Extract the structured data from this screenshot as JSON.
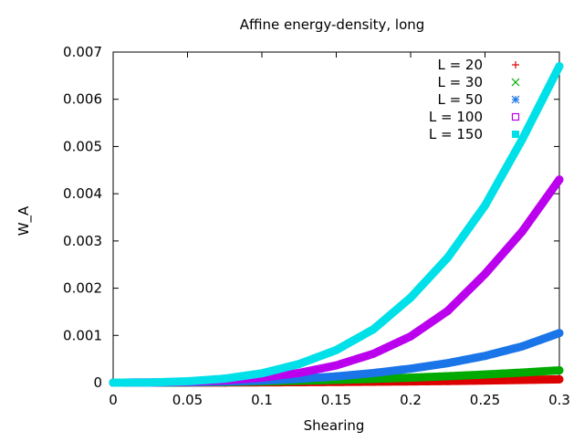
{
  "chart_data": {
    "type": "scatter",
    "title": "Affine energy-density, long",
    "xlabel": "Shearing",
    "ylabel": "W_A",
    "xlim": [
      0,
      0.3
    ],
    "ylim": [
      0,
      0.007
    ],
    "x_ticks": [
      "0",
      "0.05",
      "0.1",
      "0.15",
      "0.2",
      "0.25",
      "0.3"
    ],
    "y_ticks": [
      "0",
      "0.001",
      "0.002",
      "0.003",
      "0.004",
      "0.005",
      "0.006",
      "0.007"
    ],
    "grid": false,
    "legend_position": "top-right",
    "series": [
      {
        "name": "L = 20",
        "color": "#dd0000",
        "marker": "plus",
        "x": [
          0,
          0.025,
          0.05,
          0.075,
          0.1,
          0.125,
          0.15,
          0.175,
          0.2,
          0.225,
          0.25,
          0.275,
          0.3
        ],
        "y": [
          0,
          2e-07,
          1.3e-06,
          3.4e-06,
          6.3e-06,
          1e-05,
          1.45e-05,
          2e-05,
          2.6e-05,
          3.4e-05,
          4.5e-05,
          5.7e-05,
          7e-05
        ]
      },
      {
        "name": "L = 30",
        "color": "#00aa00",
        "marker": "x",
        "x": [
          0,
          0.025,
          0.05,
          0.075,
          0.1,
          0.125,
          0.15,
          0.175,
          0.2,
          0.225,
          0.25,
          0.275,
          0.3
        ],
        "y": [
          0,
          9e-07,
          4.9e-06,
          1.3e-05,
          2.5e-05,
          4e-05,
          5.8e-05,
          8e-05,
          0.000105,
          0.000136,
          0.000172,
          0.000213,
          0.00026
        ]
      },
      {
        "name": "L = 50",
        "color": "#1a75e8",
        "marker": "star",
        "x": [
          0,
          0.025,
          0.05,
          0.075,
          0.1,
          0.125,
          0.15,
          0.175,
          0.2,
          0.225,
          0.25,
          0.275,
          0.3
        ],
        "y": [
          0,
          2.2e-06,
          8.4e-06,
          2.1e-05,
          4.4e-05,
          8e-05,
          0.000132,
          0.000203,
          0.000296,
          0.000413,
          0.000566,
          0.000768,
          0.00105
        ]
      },
      {
        "name": "L = 100",
        "color": "#bb00ee",
        "marker": "open-square",
        "x": [
          0,
          0.025,
          0.05,
          0.075,
          0.1,
          0.125,
          0.15,
          0.175,
          0.2,
          0.225,
          0.25,
          0.275,
          0.3
        ],
        "y": [
          0,
          2.8e-06,
          1.7e-05,
          4.8e-05,
          0.000106,
          0.000205,
          0.000365,
          0.000612,
          0.00098,
          0.00152,
          0.0023,
          0.0032,
          0.0043
        ]
      },
      {
        "name": "L = 150",
        "color": "#00e0e8",
        "marker": "filled-square",
        "x": [
          0,
          0.025,
          0.05,
          0.075,
          0.1,
          0.125,
          0.15,
          0.175,
          0.2,
          0.225,
          0.25,
          0.275,
          0.3
        ],
        "y": [
          0,
          3.6e-06,
          2.8e-05,
          8.4e-05,
          0.000198,
          0.000394,
          0.00069,
          0.00113,
          0.0018,
          0.00265,
          0.00375,
          0.00515,
          0.0067
        ]
      }
    ]
  }
}
